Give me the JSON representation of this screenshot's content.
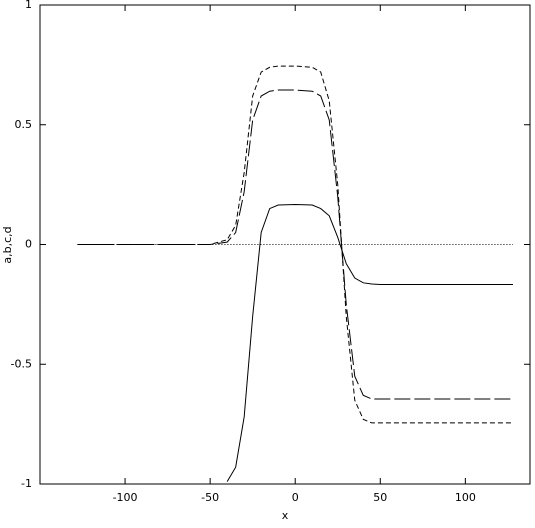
{
  "chart_data": {
    "type": "line",
    "x_label": "x",
    "y_label": "a,b,c,d",
    "x": [
      -128,
      -60,
      -50,
      -40,
      -35,
      -30,
      -25,
      -20,
      -15,
      -10,
      0,
      10,
      15,
      20,
      25,
      30,
      35,
      40,
      45,
      50,
      60,
      128
    ],
    "series": [
      {
        "color": "#000000",
        "dash": "5,3",
        "values": [
          0,
          0,
          0,
          0.02,
          0.08,
          0.3,
          0.62,
          0.72,
          0.74,
          0.745,
          0.745,
          0.74,
          0.72,
          0.6,
          0.25,
          -0.3,
          -0.65,
          -0.73,
          -0.745,
          -0.745,
          -0.745,
          -0.745
        ]
      },
      {
        "color": "#000000",
        "dash": "16,4",
        "values": [
          0,
          0,
          0,
          0.01,
          0.05,
          0.22,
          0.52,
          0.62,
          0.64,
          0.645,
          0.645,
          0.64,
          0.62,
          0.52,
          0.2,
          -0.25,
          -0.55,
          -0.63,
          -0.645,
          -0.645,
          -0.645,
          -0.645
        ]
      },
      {
        "color": "#000000",
        "dash": "none",
        "values": [
          null,
          null,
          null,
          -0.99,
          -0.93,
          -0.72,
          -0.3,
          0.05,
          0.15,
          0.165,
          0.167,
          0.165,
          0.15,
          0.12,
          0.03,
          -0.08,
          -0.14,
          -0.16,
          -0.165,
          -0.167,
          -0.167,
          -0.167
        ]
      },
      {
        "color": "#000000",
        "dash": "1,2",
        "values": [
          0,
          0,
          0,
          0,
          0,
          0,
          0,
          0,
          0,
          0,
          0,
          0,
          0,
          0,
          0,
          0,
          0,
          0,
          0,
          0,
          0,
          0
        ]
      }
    ],
    "xlim": [
      -150,
      138
    ],
    "ylim": [
      -1,
      1
    ],
    "xticks": [
      -100,
      -50,
      0,
      50,
      100
    ],
    "yticks": [
      -1,
      -0.5,
      0,
      0.5,
      1
    ]
  }
}
